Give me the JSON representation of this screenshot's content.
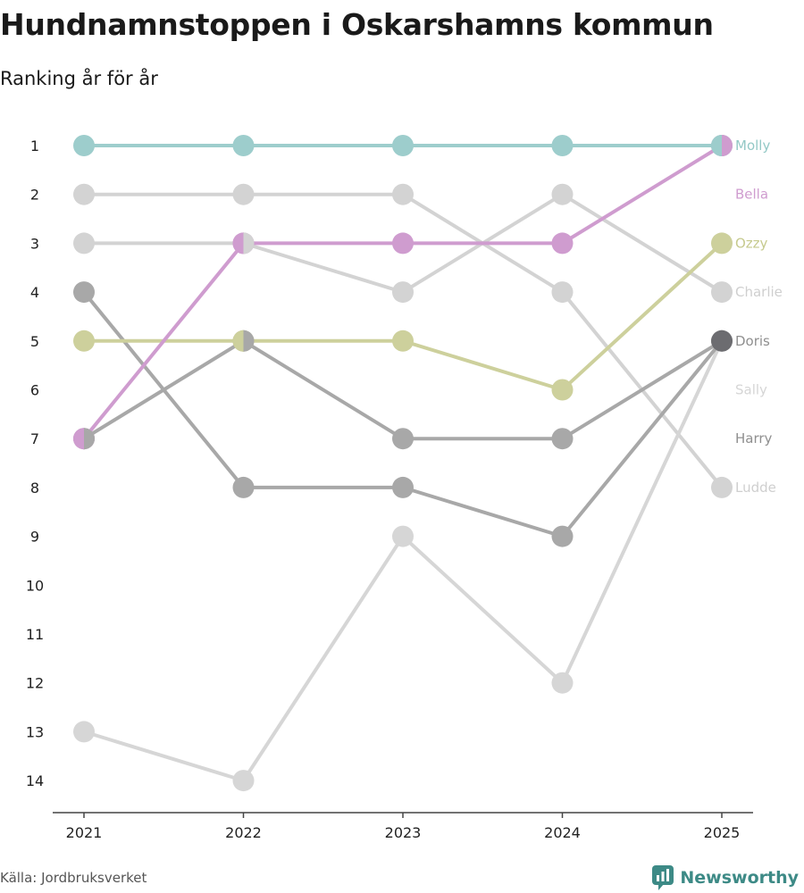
{
  "chart_data": {
    "type": "line",
    "title": "Hundnamnstoppen i Oskarshamns kommun",
    "subtitle": "Ranking år för år",
    "x": [
      "2021",
      "2022",
      "2023",
      "2024",
      "2025"
    ],
    "y_ticks": [
      "1",
      "2",
      "3",
      "4",
      "5",
      "6",
      "7",
      "8",
      "9",
      "10",
      "11",
      "12",
      "13",
      "14"
    ],
    "ylim": [
      1,
      14
    ],
    "y_inverted": true,
    "series": [
      {
        "name": "Ludde",
        "values": [
          2,
          2,
          2,
          4,
          8
        ],
        "color": "#d3d3d3",
        "label_color": "#cfcfcf"
      },
      {
        "name": "Charlie",
        "values": [
          3,
          3,
          4,
          2,
          4
        ],
        "color": "#d3d3d3",
        "label_color": "#cfcfcf"
      },
      {
        "name": "Sally",
        "values": [
          13,
          14,
          9,
          12,
          5
        ],
        "color": "#d6d6d6",
        "label_color": "#d6d6d6"
      },
      {
        "name": "Harry",
        "values": [
          4,
          8,
          8,
          9,
          5
        ],
        "color": "#a8a8a8",
        "label_color": "#8f8f8f"
      },
      {
        "name": "Doris",
        "values": [
          7,
          5,
          7,
          7,
          5
        ],
        "color": "#a8a8a8",
        "label_color": "#8f8f8f",
        "last_color": "#6c6c70"
      },
      {
        "name": "Ozzy",
        "values": [
          5,
          5,
          5,
          6,
          3
        ],
        "color": "#cdd09c",
        "label_color": "#c6ca8e"
      },
      {
        "name": "Bella",
        "values": [
          7,
          3,
          3,
          3,
          1
        ],
        "color": "#cf9ccf",
        "label_color": "#cf9ccf"
      },
      {
        "name": "Molly",
        "values": [
          1,
          1,
          1,
          1,
          1
        ],
        "color": "#9dcdcc",
        "label_color": "#93c8c6"
      }
    ],
    "end_labels": [
      {
        "name": "Molly",
        "rank": 1,
        "color": "#93c8c6"
      },
      {
        "name": "Bella",
        "rank": 2,
        "color": "#cf9ccf"
      },
      {
        "name": "Ozzy",
        "rank": 3,
        "color": "#c6ca8e"
      },
      {
        "name": "Charlie",
        "rank": 4,
        "color": "#cfcfcf"
      },
      {
        "name": "Doris",
        "rank": 5,
        "color": "#8f8f8f"
      },
      {
        "name": "Sally",
        "rank": 6,
        "color": "#d6d6d6"
      },
      {
        "name": "Harry",
        "rank": 7,
        "color": "#8f8f8f"
      },
      {
        "name": "Ludde",
        "rank": 8,
        "color": "#cfcfcf"
      }
    ],
    "split_markers": [
      {
        "x": "2021",
        "rank": 7,
        "left": "#cf9ccf",
        "right": "#a8a8a8"
      },
      {
        "x": "2022",
        "rank": 3,
        "left": "#cf9ccf",
        "right": "#d3d3d3"
      },
      {
        "x": "2022",
        "rank": 5,
        "left": "#cdd09c",
        "right": "#a8a8a8"
      },
      {
        "x": "2025",
        "rank": 1,
        "left": "#9dcdcc",
        "right": "#cf9ccf"
      }
    ]
  },
  "footer": {
    "source": "Källa: Jordbruksverket",
    "brand": "Newsworthy",
    "brand_color": "#3d8a86"
  }
}
